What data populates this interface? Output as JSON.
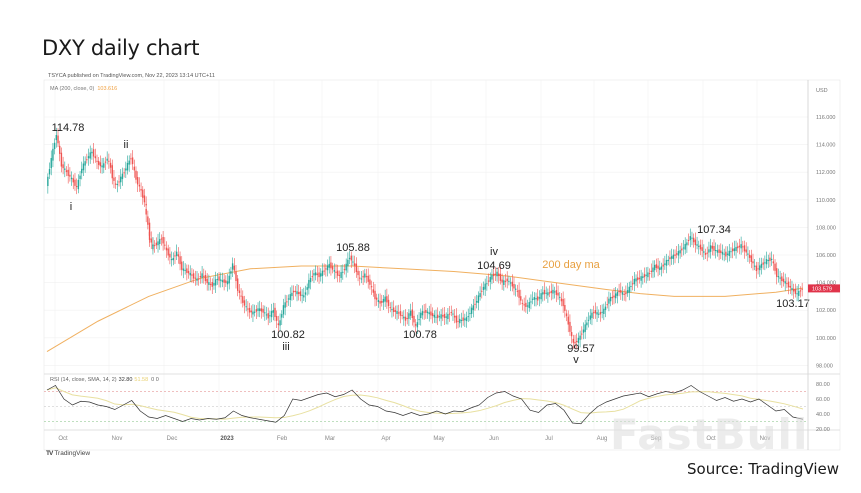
{
  "header": {
    "title": "DXY daily chart"
  },
  "chart_meta": {
    "published": "TSYCA published on TradingView.com, Nov 22, 2023 13:14 UTC+11",
    "ma_legend_label": "MA (200, close, 0)",
    "ma_legend_value": "103.616",
    "rsi_legend_label": "RSI (14, close, SMA, 14, 2)",
    "rsi_value": "32.80",
    "rsi_sma_value": "51.58",
    "rsi_extra": "0 0",
    "currency": "USD",
    "current_price_tag": "103.579",
    "ma_annotation": "200 day ma",
    "branding": "TradingView",
    "source": "Source: TradingView",
    "watermark": "FastBull"
  },
  "colors": {
    "up": "#26a69a",
    "down": "#ef5350",
    "ma": "#f0b060",
    "rsi": "#333333",
    "rsi_sma": "#e8e0a0",
    "price_tag": "#e0334a"
  },
  "chart_data": {
    "type": "line",
    "title": "DXY daily chart",
    "xlabel": "",
    "ylabel": "USD",
    "ylim": [
      97,
      117
    ],
    "grid": true,
    "x_ticks": [
      "Oct",
      "Nov",
      "Dec",
      "2023",
      "Feb",
      "Mar",
      "Apr",
      "May",
      "Jun",
      "Jul",
      "Aug",
      "Sep",
      "Oct",
      "Nov"
    ],
    "y_ticks": [
      "116.000",
      "114.000",
      "112.000",
      "110.000",
      "108.000",
      "106.000",
      "104.000",
      "102.000",
      "100.000",
      "98.000"
    ],
    "annotations": [
      {
        "label": "114.78",
        "wave": "",
        "price": 114.78,
        "date": "Sep 2022"
      },
      {
        "label": "i",
        "wave": "i",
        "price": 110.9,
        "date": "Oct 2022"
      },
      {
        "label": "ii",
        "wave": "ii",
        "price": 113.1,
        "date": "Nov 2022"
      },
      {
        "label": "100.82",
        "wave": "iii",
        "price": 100.82,
        "date": "Feb 2023"
      },
      {
        "label": "105.88",
        "wave": "",
        "price": 105.88,
        "date": "Mar 2023"
      },
      {
        "label": "100.78",
        "wave": "",
        "price": 100.78,
        "date": "Apr 2023"
      },
      {
        "label": "104.69",
        "wave": "iv",
        "price": 104.69,
        "date": "Jun 2023"
      },
      {
        "label": "99.57",
        "wave": "v",
        "price": 99.57,
        "date": "Jul 2023"
      },
      {
        "label": "107.34",
        "wave": "",
        "price": 107.34,
        "date": "Oct 2023"
      },
      {
        "label": "103.17",
        "wave": "",
        "price": 103.17,
        "date": "Nov 2023"
      }
    ],
    "series": [
      {
        "name": "DXY close (approx.)",
        "points": [
          [
            0,
            111.0
          ],
          [
            3,
            113.0
          ],
          [
            6,
            114.78
          ],
          [
            9,
            112.5
          ],
          [
            12,
            112.0
          ],
          [
            15,
            111.5
          ],
          [
            18,
            110.9
          ],
          [
            21,
            112.3
          ],
          [
            24,
            113.0
          ],
          [
            27,
            113.5
          ],
          [
            30,
            112.7
          ],
          [
            33,
            112.4
          ],
          [
            36,
            113.0
          ],
          [
            38,
            112.0
          ],
          [
            41,
            111.0
          ],
          [
            44,
            111.6
          ],
          [
            47,
            112.3
          ],
          [
            50,
            113.1
          ],
          [
            53,
            111.5
          ],
          [
            56,
            110.6
          ],
          [
            58,
            109.5
          ],
          [
            60,
            107.5
          ],
          [
            62,
            106.6
          ],
          [
            65,
            106.8
          ],
          [
            68,
            107.2
          ],
          [
            71,
            106.3
          ],
          [
            74,
            105.6
          ],
          [
            77,
            106.2
          ],
          [
            80,
            105.0
          ],
          [
            83,
            104.8
          ],
          [
            86,
            104.5
          ],
          [
            89,
            104.2
          ],
          [
            92,
            104.6
          ],
          [
            95,
            104.0
          ],
          [
            98,
            103.8
          ],
          [
            101,
            104.3
          ],
          [
            104,
            104.1
          ],
          [
            107,
            104.0
          ],
          [
            110,
            105.4
          ],
          [
            113,
            103.5
          ],
          [
            116,
            102.6
          ],
          [
            119,
            102.0
          ],
          [
            122,
            101.8
          ],
          [
            125,
            102.1
          ],
          [
            128,
            101.9
          ],
          [
            131,
            101.5
          ],
          [
            134,
            102.0
          ],
          [
            137,
            100.82
          ],
          [
            140,
            102.3
          ],
          [
            143,
            102.9
          ],
          [
            146,
            103.4
          ],
          [
            149,
            103.2
          ],
          [
            152,
            103.0
          ],
          [
            155,
            104.1
          ],
          [
            158,
            104.7
          ],
          [
            161,
            104.5
          ],
          [
            164,
            104.9
          ],
          [
            167,
            105.3
          ],
          [
            170,
            104.8
          ],
          [
            173,
            104.5
          ],
          [
            176,
            105.0
          ],
          [
            179,
            105.88
          ],
          [
            182,
            105.2
          ],
          [
            185,
            104.2
          ],
          [
            188,
            104.6
          ],
          [
            191,
            103.9
          ],
          [
            194,
            102.9
          ],
          [
            197,
            102.5
          ],
          [
            200,
            102.9
          ],
          [
            203,
            102.1
          ],
          [
            206,
            101.9
          ],
          [
            209,
            101.7
          ],
          [
            212,
            101.3
          ],
          [
            215,
            101.9
          ],
          [
            218,
            100.78
          ],
          [
            221,
            101.8
          ],
          [
            224,
            101.9
          ],
          [
            227,
            101.7
          ],
          [
            230,
            101.5
          ],
          [
            233,
            101.6
          ],
          [
            236,
            101.5
          ],
          [
            239,
            101.9
          ],
          [
            242,
            101.2
          ],
          [
            245,
            101.3
          ],
          [
            248,
            101.4
          ],
          [
            251,
            102.1
          ],
          [
            254,
            102.7
          ],
          [
            257,
            103.5
          ],
          [
            260,
            104.0
          ],
          [
            263,
            104.5
          ],
          [
            266,
            104.69
          ],
          [
            269,
            104.0
          ],
          [
            272,
            104.2
          ],
          [
            275,
            103.8
          ],
          [
            278,
            103.3
          ],
          [
            281,
            102.4
          ],
          [
            284,
            102.3
          ],
          [
            287,
            102.9
          ],
          [
            290,
            102.8
          ],
          [
            293,
            103.3
          ],
          [
            296,
            103.2
          ],
          [
            299,
            103.4
          ],
          [
            302,
            103.1
          ],
          [
            305,
            102.4
          ],
          [
            308,
            101.0
          ],
          [
            311,
            99.57
          ],
          [
            314,
            99.9
          ],
          [
            317,
            100.6
          ],
          [
            320,
            101.4
          ],
          [
            323,
            101.9
          ],
          [
            326,
            101.7
          ],
          [
            329,
            102.0
          ],
          [
            332,
            102.8
          ],
          [
            335,
            103.0
          ],
          [
            338,
            103.4
          ],
          [
            341,
            103.1
          ],
          [
            344,
            103.6
          ],
          [
            347,
            104.2
          ],
          [
            350,
            104.3
          ],
          [
            353,
            104.5
          ],
          [
            356,
            104.7
          ],
          [
            359,
            105.2
          ],
          [
            362,
            105.0
          ],
          [
            365,
            105.4
          ],
          [
            368,
            105.8
          ],
          [
            371,
            106.0
          ],
          [
            374,
            106.3
          ],
          [
            377,
            106.7
          ],
          [
            380,
            107.34
          ],
          [
            383,
            106.8
          ],
          [
            386,
            106.5
          ],
          [
            389,
            106.0
          ],
          [
            392,
            106.6
          ],
          [
            395,
            106.3
          ],
          [
            398,
            106.2
          ],
          [
            401,
            106.0
          ],
          [
            404,
            106.3
          ],
          [
            407,
            106.5
          ],
          [
            410,
            106.7
          ],
          [
            413,
            106.2
          ],
          [
            416,
            105.6
          ],
          [
            419,
            104.9
          ],
          [
            422,
            105.3
          ],
          [
            425,
            105.6
          ],
          [
            428,
            105.7
          ],
          [
            431,
            104.5
          ],
          [
            434,
            104.2
          ],
          [
            437,
            103.9
          ],
          [
            440,
            103.5
          ],
          [
            443,
            103.17
          ],
          [
            446,
            103.58
          ]
        ]
      },
      {
        "name": "200 day MA (approx.)",
        "points": [
          [
            0,
            99.0
          ],
          [
            30,
            101.2
          ],
          [
            60,
            103.0
          ],
          [
            90,
            104.3
          ],
          [
            120,
            105.0
          ],
          [
            150,
            105.2
          ],
          [
            180,
            105.2
          ],
          [
            210,
            105.0
          ],
          [
            240,
            104.8
          ],
          [
            270,
            104.5
          ],
          [
            300,
            104.0
          ],
          [
            330,
            103.5
          ],
          [
            350,
            103.2
          ],
          [
            370,
            103.0
          ],
          [
            400,
            103.0
          ],
          [
            430,
            103.3
          ],
          [
            446,
            103.6
          ]
        ]
      },
      {
        "name": "RSI (14)",
        "points": [
          [
            0,
            72
          ],
          [
            5,
            78
          ],
          [
            10,
            60
          ],
          [
            15,
            52
          ],
          [
            20,
            57
          ],
          [
            25,
            56
          ],
          [
            30,
            52
          ],
          [
            35,
            50
          ],
          [
            40,
            46
          ],
          [
            45,
            52
          ],
          [
            50,
            58
          ],
          [
            55,
            44
          ],
          [
            60,
            36
          ],
          [
            65,
            34
          ],
          [
            70,
            38
          ],
          [
            75,
            34
          ],
          [
            80,
            30
          ],
          [
            85,
            34
          ],
          [
            90,
            32
          ],
          [
            95,
            34
          ],
          [
            100,
            33
          ],
          [
            105,
            35
          ],
          [
            110,
            44
          ],
          [
            115,
            38
          ],
          [
            120,
            35
          ],
          [
            125,
            33
          ],
          [
            130,
            31
          ],
          [
            135,
            29
          ],
          [
            140,
            38
          ],
          [
            145,
            60
          ],
          [
            150,
            58
          ],
          [
            155,
            62
          ],
          [
            160,
            66
          ],
          [
            165,
            68
          ],
          [
            170,
            63
          ],
          [
            175,
            66
          ],
          [
            180,
            72
          ],
          [
            185,
            60
          ],
          [
            190,
            52
          ],
          [
            195,
            50
          ],
          [
            200,
            44
          ],
          [
            205,
            42
          ],
          [
            210,
            38
          ],
          [
            215,
            42
          ],
          [
            220,
            38
          ],
          [
            225,
            40
          ],
          [
            230,
            44
          ],
          [
            235,
            40
          ],
          [
            240,
            44
          ],
          [
            245,
            43
          ],
          [
            250,
            48
          ],
          [
            255,
            52
          ],
          [
            260,
            62
          ],
          [
            265,
            68
          ],
          [
            270,
            70
          ],
          [
            275,
            64
          ],
          [
            280,
            60
          ],
          [
            285,
            45
          ],
          [
            290,
            42
          ],
          [
            295,
            52
          ],
          [
            300,
            54
          ],
          [
            305,
            45
          ],
          [
            310,
            28
          ],
          [
            315,
            27
          ],
          [
            320,
            40
          ],
          [
            325,
            50
          ],
          [
            330,
            56
          ],
          [
            335,
            60
          ],
          [
            340,
            64
          ],
          [
            345,
            66
          ],
          [
            350,
            68
          ],
          [
            355,
            63
          ],
          [
            360,
            67
          ],
          [
            365,
            70
          ],
          [
            370,
            68
          ],
          [
            375,
            72
          ],
          [
            380,
            78
          ],
          [
            385,
            70
          ],
          [
            390,
            64
          ],
          [
            395,
            58
          ],
          [
            400,
            62
          ],
          [
            405,
            57
          ],
          [
            410,
            60
          ],
          [
            415,
            56
          ],
          [
            420,
            60
          ],
          [
            425,
            52
          ],
          [
            430,
            44
          ],
          [
            435,
            46
          ],
          [
            440,
            36
          ],
          [
            446,
            33
          ]
        ]
      }
    ],
    "rsi_panel": {
      "y_ticks": [
        "80.00",
        "60.00",
        "40.00",
        "20.00"
      ],
      "levels": [
        70,
        50,
        30
      ]
    }
  }
}
